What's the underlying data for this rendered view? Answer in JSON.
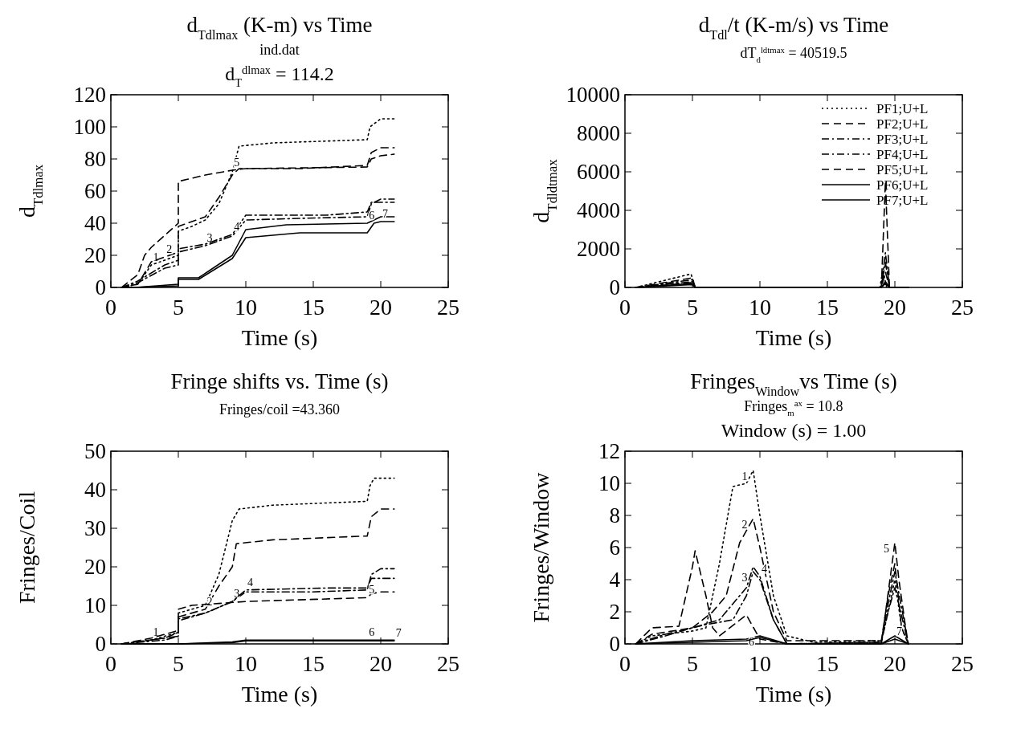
{
  "chart_data": [
    {
      "type": "line",
      "title": "d$_{Tdlmax}$ (K-m) vs Time",
      "subtitle": "d$_{T}$$^{dlmax}$ = 114.2",
      "annotations": [
        "ind.dat"
      ],
      "xlabel": "Time (s)",
      "ylabel": "d$_{Tdlmax}$",
      "xlim": [
        0,
        25
      ],
      "xticks": [
        0,
        5,
        10,
        15,
        20,
        25
      ],
      "ylim": [
        0,
        120
      ],
      "yticks": [
        0,
        20,
        40,
        60,
        80,
        100,
        120
      ],
      "legend": false,
      "grid": false,
      "series": [
        {
          "name": "1",
          "color": "#000000",
          "line_style": "dotted",
          "x": [
            0.8,
            2,
            3,
            4,
            5,
            5,
            6,
            7,
            8,
            9,
            9.5,
            12,
            19,
            19.2,
            20,
            21
          ],
          "values": [
            0,
            2,
            14,
            17,
            20,
            35,
            38,
            42,
            52,
            72,
            88,
            90,
            92,
            100,
            105,
            105
          ]
        },
        {
          "name": "2",
          "color": "#000000",
          "line_style": "dashed",
          "x": [
            0.8,
            2,
            3,
            4,
            5,
            5,
            7,
            8,
            9,
            9.5,
            14,
            19,
            19.3,
            20,
            21
          ],
          "values": [
            0,
            2,
            16,
            19,
            22,
            38,
            44,
            56,
            70,
            74,
            74,
            76,
            84,
            87,
            87
          ]
        },
        {
          "name": "3",
          "color": "#000000",
          "line_style": "dashdot",
          "x": [
            0.8,
            2,
            4,
            5,
            5,
            7,
            9,
            10,
            14,
            19,
            19.3,
            20,
            21
          ],
          "values": [
            0,
            3,
            12,
            14,
            22,
            26,
            32,
            42,
            43,
            44,
            52,
            55,
            55
          ]
        },
        {
          "name": "4",
          "color": "#000000",
          "line_style": "dashdot",
          "x": [
            0.8,
            2,
            4,
            5,
            5,
            7,
            9,
            10,
            16,
            19,
            19.3,
            21
          ],
          "values": [
            0,
            4,
            14,
            17,
            24,
            27,
            33,
            45,
            45,
            47,
            53,
            53
          ]
        },
        {
          "name": "5",
          "color": "#000000",
          "line_style": "dashed",
          "x": [
            0.8,
            2,
            2.5,
            3,
            5,
            5,
            6,
            7,
            9,
            10,
            19,
            19.3,
            20,
            21
          ],
          "values": [
            0,
            8,
            20,
            25,
            40,
            66,
            68,
            70,
            73,
            74,
            75,
            80,
            82,
            83
          ]
        },
        {
          "name": "6",
          "color": "#000000",
          "line_style": "solid",
          "x": [
            0.8,
            1.8,
            5,
            5,
            6.5,
            9,
            10,
            13,
            19,
            19.5,
            20,
            21
          ],
          "values": [
            0,
            0,
            2,
            6,
            6,
            20,
            36,
            39,
            40,
            42,
            44,
            44
          ]
        },
        {
          "name": "7",
          "color": "#000000",
          "line_style": "solid",
          "x": [
            0.8,
            1.8,
            5,
            5,
            6.5,
            9,
            10,
            14,
            19,
            19.5,
            20,
            21
          ],
          "values": [
            0,
            0,
            1,
            5,
            5,
            18,
            31,
            34,
            34,
            40,
            41,
            41
          ]
        }
      ]
    },
    {
      "type": "line",
      "title": "d$_{Tdl}$/t (K-m/s) vs Time",
      "subtitle": "dT$_{d}$$^{ldtmax}$ = 40519.5",
      "xlabel": "Time (s)",
      "ylabel": "d$_{Tdldtmax}$",
      "xlim": [
        0,
        25
      ],
      "xticks": [
        0,
        5,
        10,
        15,
        20,
        25
      ],
      "ylim": [
        0,
        10000
      ],
      "yticks": [
        0,
        2000,
        4000,
        6000,
        8000,
        10000
      ],
      "legend": "top right",
      "grid": false,
      "series": [
        {
          "name": "PF1;U+L",
          "color": "#000000",
          "line_style": "dotted",
          "x": [
            0.8,
            4.9,
            5.2,
            18.9,
            19.1,
            19.4,
            21
          ],
          "values": [
            0,
            700,
            0,
            0,
            900,
            0,
            0
          ]
        },
        {
          "name": "PF2;U+L",
          "color": "#000000",
          "line_style": "dashed",
          "x": [
            0.8,
            5,
            5.2,
            19,
            19.3,
            19.6,
            21
          ],
          "values": [
            0,
            500,
            0,
            0,
            5500,
            0,
            0
          ]
        },
        {
          "name": "PF3;U+L",
          "color": "#000000",
          "line_style": "dashdot",
          "x": [
            0.8,
            5,
            5.2,
            19,
            19.3,
            19.6,
            21
          ],
          "values": [
            0,
            400,
            0,
            0,
            1800,
            0,
            0
          ]
        },
        {
          "name": "PF4;U+L",
          "color": "#000000",
          "line_style": "dashdot",
          "x": [
            0.8,
            5,
            5.2,
            19,
            19.3,
            19.6,
            21
          ],
          "values": [
            0,
            300,
            0,
            0,
            1300,
            0,
            0
          ]
        },
        {
          "name": "PF5;U+L",
          "color": "#000000",
          "line_style": "dashed",
          "x": [
            0.8,
            5,
            5.2,
            19,
            19.3,
            19.6,
            21
          ],
          "values": [
            0,
            250,
            0,
            0,
            800,
            0,
            0
          ]
        },
        {
          "name": "PF6;U+L",
          "color": "#000000",
          "line_style": "solid",
          "x": [
            0.8,
            5,
            5.2,
            19,
            19.3,
            19.6,
            21
          ],
          "values": [
            0,
            200,
            0,
            0,
            300,
            0,
            0
          ]
        },
        {
          "name": "PF7;U+L",
          "color": "#000000",
          "line_style": "solid",
          "x": [
            0.8,
            5,
            5.2,
            19,
            19.3,
            19.6,
            21
          ],
          "values": [
            0,
            150,
            0,
            0,
            200,
            0,
            0
          ]
        }
      ]
    },
    {
      "type": "line",
      "title": "Fringe shifts vs. Time (s)",
      "subtitle": "Fringes/coil =43.360",
      "xlabel": "Time (s)",
      "ylabel": "Fringes/Coil",
      "xlim": [
        0,
        25
      ],
      "xticks": [
        0,
        5,
        10,
        15,
        20,
        25
      ],
      "ylim": [
        0,
        50
      ],
      "yticks": [
        0,
        10,
        20,
        30,
        40,
        50
      ],
      "legend": false,
      "grid": false,
      "series": [
        {
          "name": "1",
          "color": "#000000",
          "line_style": "dotted",
          "x": [
            0.8,
            3,
            5,
            5,
            7,
            8,
            9,
            9.5,
            12,
            19,
            19.2,
            19.5,
            21
          ],
          "values": [
            0,
            1,
            3,
            8,
            10,
            18,
            32,
            35,
            36,
            37,
            41,
            43,
            43
          ]
        },
        {
          "name": "2",
          "color": "#000000",
          "line_style": "dashed",
          "x": [
            0.8,
            3,
            5,
            5,
            7,
            8,
            9,
            9.3,
            12,
            19,
            19.3,
            20,
            21
          ],
          "values": [
            0,
            1.5,
            3.5,
            7,
            9,
            15,
            20,
            26,
            27,
            28,
            33,
            35,
            35
          ]
        },
        {
          "name": "3",
          "color": "#000000",
          "line_style": "dashdot",
          "x": [
            0.8,
            4,
            5,
            5,
            7,
            9,
            10,
            15,
            19,
            19.3,
            20,
            21
          ],
          "values": [
            0,
            1,
            2,
            6,
            8,
            11,
            13.5,
            13.5,
            14,
            18,
            19.5,
            19.5
          ]
        },
        {
          "name": "4",
          "color": "#000000",
          "line_style": "dashdot",
          "x": [
            0.8,
            4,
            5,
            5,
            7,
            9,
            10,
            16,
            19,
            19.3,
            21
          ],
          "values": [
            0,
            1.5,
            3,
            6.5,
            8,
            11,
            14,
            14.5,
            14.5,
            17,
            17
          ]
        },
        {
          "name": "5",
          "color": "#000000",
          "line_style": "dashed",
          "x": [
            0.8,
            5,
            5,
            6,
            8,
            10,
            19,
            19.3,
            20,
            21
          ],
          "values": [
            0,
            2,
            9,
            10,
            10.5,
            11,
            12,
            13,
            13.5,
            13.5
          ]
        },
        {
          "name": "6",
          "color": "#000000",
          "line_style": "solid",
          "x": [
            0.8,
            5,
            9,
            10,
            19,
            21
          ],
          "values": [
            0,
            0,
            0.5,
            1,
            1,
            1
          ]
        },
        {
          "name": "7",
          "color": "#000000",
          "line_style": "solid",
          "x": [
            0.8,
            5,
            9,
            10,
            19,
            21
          ],
          "values": [
            0,
            0,
            0.3,
            0.8,
            0.8,
            0.8
          ]
        }
      ]
    },
    {
      "type": "line",
      "title": "Fringes$_{Window}$vs Time (s)",
      "subtitle": "Window (s) = 1.00",
      "annotations": [
        "Fringes$_{m}$$^{ax}$ = 10.8"
      ],
      "xlabel": "Time (s)",
      "ylabel": "Fringes/Window",
      "xlim": [
        0,
        25
      ],
      "xticks": [
        0,
        5,
        10,
        15,
        20,
        25
      ],
      "ylim": [
        0,
        12
      ],
      "yticks": [
        0,
        2,
        4,
        6,
        8,
        10,
        12
      ],
      "legend": false,
      "grid": false,
      "series": [
        {
          "name": "1",
          "color": "#000000",
          "line_style": "dotted",
          "x": [
            0.8,
            2,
            5,
            6,
            7,
            8,
            9,
            9.5,
            10,
            11,
            12,
            14,
            19,
            19.5,
            20,
            20.5,
            21
          ],
          "values": [
            0,
            0.5,
            0.8,
            1,
            5,
            9.8,
            10,
            10.8,
            8,
            3,
            0.5,
            0.1,
            0.2,
            2,
            4,
            1,
            0
          ]
        },
        {
          "name": "2",
          "color": "#000000",
          "line_style": "dashed",
          "x": [
            0.8,
            2,
            5,
            6.5,
            7.5,
            8.5,
            9.5,
            10,
            11,
            12,
            19,
            19.5,
            20,
            20.5,
            21
          ],
          "values": [
            0,
            0.6,
            1,
            2,
            3,
            6.3,
            7.8,
            6,
            2,
            0.2,
            0.2,
            3,
            5,
            1,
            0
          ]
        },
        {
          "name": "3",
          "color": "#000000",
          "line_style": "dashdot",
          "x": [
            0.8,
            3,
            5,
            6,
            8,
            9,
            9.5,
            10,
            11,
            12,
            19,
            19.5,
            20,
            21
          ],
          "values": [
            0,
            0.5,
            1,
            1.2,
            1.5,
            3,
            4.5,
            4,
            1.5,
            0,
            0.1,
            2,
            3.5,
            0
          ]
        },
        {
          "name": "4",
          "color": "#000000",
          "line_style": "dashdot",
          "x": [
            0.8,
            3,
            5,
            7,
            9,
            9.5,
            10,
            11,
            12,
            19,
            19.5,
            20,
            21
          ],
          "values": [
            0,
            0.6,
            1,
            1.5,
            3.5,
            4.8,
            4.2,
            1.5,
            0,
            0.1,
            2.5,
            4.5,
            0
          ]
        },
        {
          "name": "5",
          "color": "#000000",
          "line_style": "dashed",
          "x": [
            0.8,
            2,
            4,
            5,
            5.2,
            6,
            6.5,
            7,
            9,
            10,
            12,
            19,
            20,
            20.3,
            20.8,
            21
          ],
          "values": [
            0,
            1,
            1.1,
            4.8,
            5.8,
            3,
            1,
            0.5,
            1.8,
            0.3,
            0,
            0,
            6.3,
            4,
            1,
            0
          ]
        },
        {
          "name": "6",
          "color": "#000000",
          "line_style": "solid",
          "x": [
            0.8,
            5,
            9,
            10,
            12,
            19,
            20,
            21
          ],
          "values": [
            0,
            0.2,
            0.3,
            0.5,
            0,
            0,
            0.5,
            0
          ]
        },
        {
          "name": "7",
          "color": "#000000",
          "line_style": "solid",
          "x": [
            0.8,
            5,
            9,
            10,
            12,
            19,
            20,
            21
          ],
          "values": [
            0,
            0.1,
            0.2,
            0.4,
            0,
            0,
            0.3,
            0
          ]
        }
      ]
    }
  ]
}
